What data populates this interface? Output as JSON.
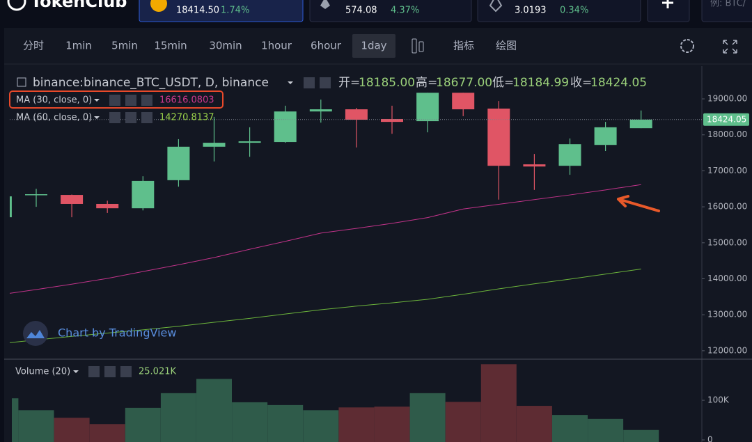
{
  "header": {
    "logo": "TokenClub",
    "tickers": [
      {
        "price": "18414.50",
        "change": "1.74%"
      },
      {
        "price": "574.08",
        "change": "4.37%"
      },
      {
        "price": "3.0193",
        "change": "0.34%"
      }
    ],
    "search_placeholder": "例: BTC/"
  },
  "toolbar": {
    "intervals": [
      "分时",
      "1min",
      "5min",
      "15min",
      "30min",
      "1hour",
      "6hour",
      "1day"
    ],
    "active_interval": 7,
    "indicators": "指标",
    "drawing": "绘图"
  },
  "legend": {
    "symbol": "binance:binance_BTC_USDT, D, binance",
    "ohlc": [
      {
        "label": "开=",
        "value": "18185.00"
      },
      {
        "label": "高=",
        "value": "18677.00"
      },
      {
        "label": "低=",
        "value": "18184.99"
      },
      {
        "label": "收=",
        "value": "18424.05"
      }
    ]
  },
  "watermark": "Chart by TradingView",
  "chart_data": [
    {
      "type": "candlestick",
      "categories": [
        null,
        null,
        null,
        null,
        null,
        null,
        null,
        null,
        null,
        null,
        null,
        null,
        null,
        null,
        null,
        null,
        null,
        null,
        null
      ],
      "open": [
        15710,
        16330,
        16330,
        16080,
        15960,
        16740,
        17670,
        17780,
        17800,
        18650,
        18710,
        18440,
        18380,
        19170,
        18730,
        17180,
        17140,
        17720,
        18185
      ],
      "high": [
        16300,
        16500,
        16340,
        16170,
        16850,
        17880,
        18500,
        18210,
        18810,
        18980,
        18750,
        18810,
        19170,
        19170,
        18940,
        17470,
        17900,
        18360,
        18677
      ],
      "low": [
        15700,
        16000,
        15710,
        15830,
        15900,
        16560,
        17260,
        17390,
        17780,
        18340,
        17650,
        18030,
        18070,
        18520,
        16200,
        16470,
        16890,
        17550,
        18184.99
      ],
      "close": [
        16290,
        16350,
        16080,
        15960,
        16720,
        17670,
        17780,
        17820,
        18650,
        18710,
        18420,
        18360,
        19170,
        18710,
        17140,
        17120,
        17740,
        18210,
        18424.05
      ],
      "up_color": "#5fbf8c",
      "down_color": "#e05565",
      "series": [
        {
          "name": "MA (30, close, 0)",
          "color": "#c2338a",
          "legend_value": "16616.0803",
          "values": [
            13560,
            13700,
            13850,
            14010,
            14200,
            14390,
            14590,
            14820,
            15040,
            15270,
            15400,
            15540,
            15700,
            15940,
            16070,
            16200,
            16330,
            16470,
            16616.0803
          ]
        },
        {
          "name": "MA (60, close, 0)",
          "color": "#6cb53b",
          "legend_value": "14270.8137",
          "values": [
            12200,
            12300,
            12400,
            12490,
            12580,
            12680,
            12790,
            12900,
            13020,
            13140,
            13240,
            13330,
            13430,
            13570,
            13720,
            13860,
            13990,
            14130,
            14270.8137
          ]
        }
      ],
      "price_line": {
        "value": 18424.05,
        "label": "18424.05"
      },
      "ylim": [
        11785,
        19910
      ],
      "yticks": [
        {
          "value": 12000,
          "label": "12000.00"
        },
        {
          "value": 13000,
          "label": "13000.00"
        },
        {
          "value": 14000,
          "label": "14000.00"
        },
        {
          "value": 15000,
          "label": "15000.00"
        },
        {
          "value": 16000,
          "label": "16000.00"
        },
        {
          "value": 17000,
          "label": "17000.00"
        },
        {
          "value": 18000,
          "label": "18000.00"
        },
        {
          "value": 19000,
          "label": "19000.00"
        }
      ],
      "grid": false
    },
    {
      "type": "bar",
      "title": "Volume (20)",
      "legend_value": "25.021K",
      "values": [
        105000,
        75000,
        56000,
        40000,
        81000,
        118000,
        154000,
        95000,
        88000,
        75000,
        82000,
        84000,
        118000,
        96000,
        191000,
        86000,
        63000,
        53000,
        25021
      ],
      "up_color": "#2f5b4a",
      "down_color": "#5e2c33",
      "ylim": [
        0,
        202000
      ],
      "yticks": [
        0,
        {
          "value": 100000,
          "label": "100K"
        }
      ],
      "grid": false
    }
  ]
}
